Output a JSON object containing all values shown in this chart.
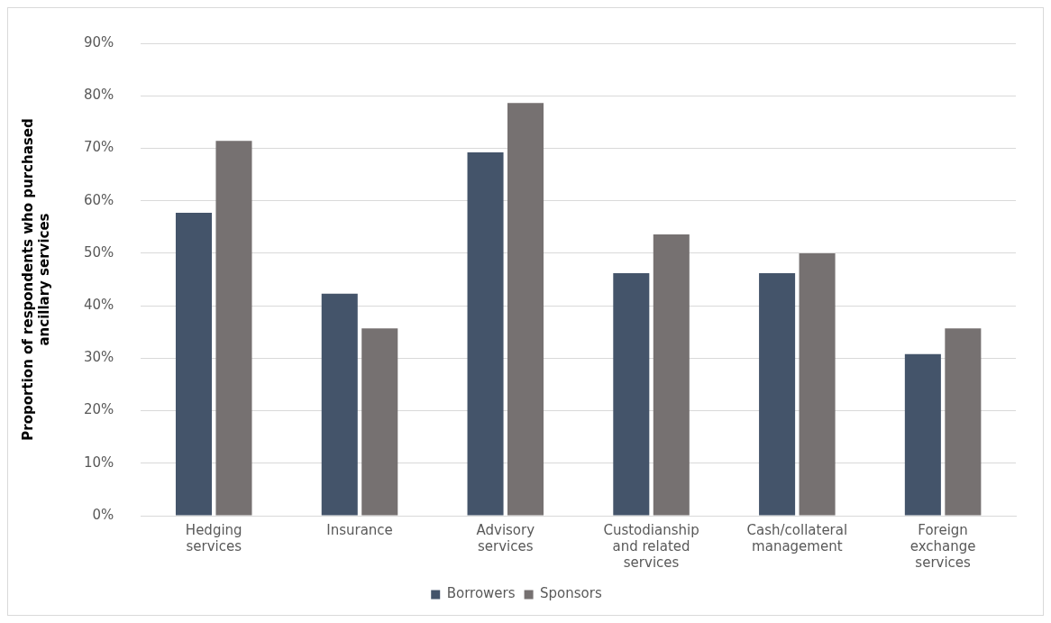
{
  "chart_data": {
    "type": "bar",
    "ylabel": "Proportion of respondents who purchased ancillary services",
    "categories": [
      "Hedging services",
      "Insurance",
      "Advisory services",
      "Custodianship and related services",
      "Cash/collateral management",
      "Foreign exchange services"
    ],
    "series": [
      {
        "name": "Borrowers",
        "color": "#44546a",
        "values": [
          57.7,
          42.3,
          69.2,
          46.2,
          46.2,
          30.8
        ]
      },
      {
        "name": "Sponsors",
        "color": "#767171",
        "values": [
          71.4,
          35.7,
          78.6,
          53.6,
          50,
          35.7
        ]
      }
    ],
    "ylim": [
      0,
      90
    ],
    "yticks": [
      {
        "value": 0,
        "label": "0%"
      },
      {
        "value": 10,
        "label": "10%"
      },
      {
        "value": 20,
        "label": "20%"
      },
      {
        "value": 30,
        "label": "30%"
      },
      {
        "value": 40,
        "label": "40%"
      },
      {
        "value": 50,
        "label": "50%"
      },
      {
        "value": 60,
        "label": "60%"
      },
      {
        "value": 70,
        "label": "70%"
      },
      {
        "value": 80,
        "label": "80%"
      },
      {
        "value": 90,
        "label": "90%"
      }
    ],
    "grid": "y",
    "legend": "bottom"
  }
}
